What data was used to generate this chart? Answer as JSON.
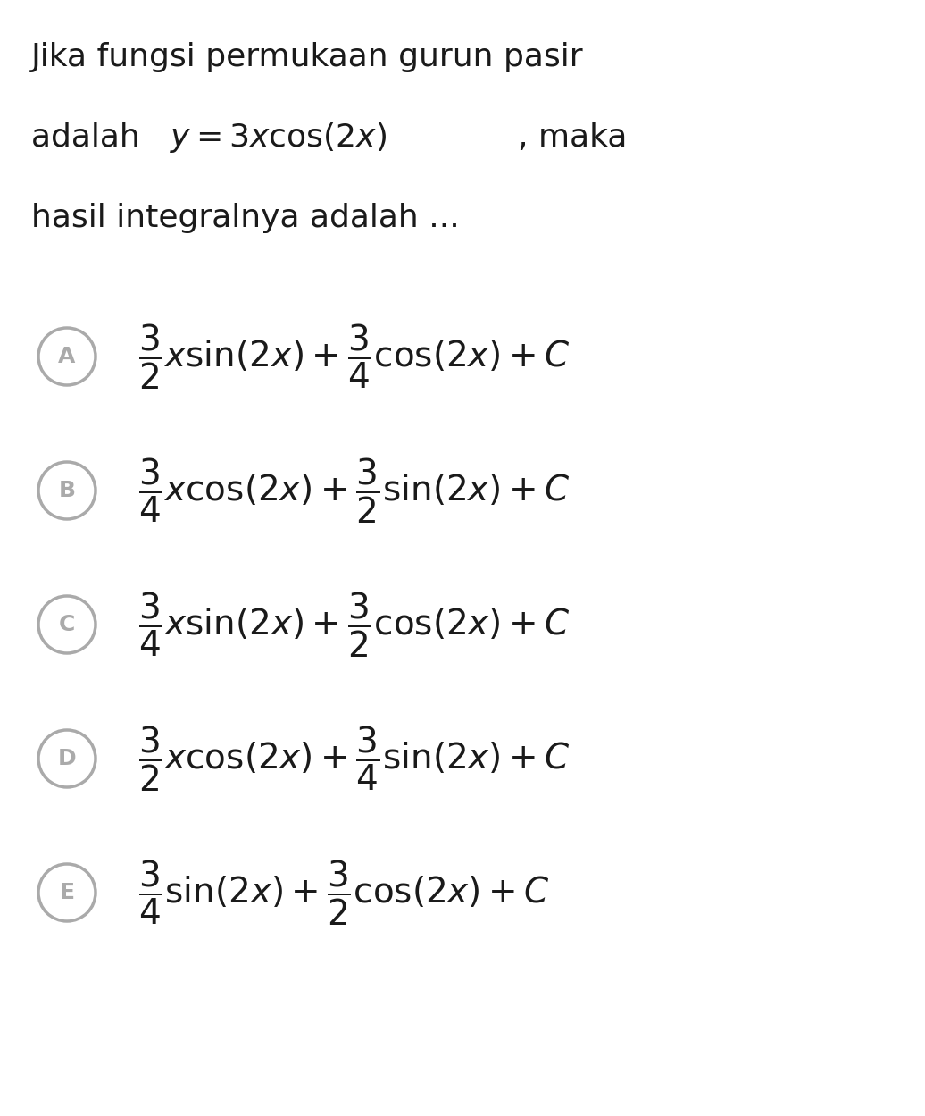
{
  "background_color": "#ffffff",
  "text_color": "#1a1a1a",
  "circle_color": "#aaaaaa",
  "fig_width": 10.36,
  "fig_height": 12.49,
  "title_line1": "Jika fungsi permukaan gurun pasir",
  "title_line2_plain": "adalah ",
  "title_line2_math": "$y = 3x\\cos(2x)$",
  "title_line2_end": ", maka",
  "title_line3": "hasil integralnya adalah ...",
  "options": [
    {
      "label": "A",
      "formula": "$\\dfrac{3}{2}x\\sin(2x) + \\dfrac{3}{4}\\cos(2x) + C$"
    },
    {
      "label": "B",
      "formula": "$\\dfrac{3}{4}x\\cos(2x) + \\dfrac{3}{2}\\sin(2x) + C$"
    },
    {
      "label": "C",
      "formula": "$\\dfrac{3}{4}x\\sin(2x) + \\dfrac{3}{2}\\cos(2x) + C$"
    },
    {
      "label": "D",
      "formula": "$\\dfrac{3}{2}x\\cos(2x) + \\dfrac{3}{4}\\sin(2x) + C$"
    },
    {
      "label": "E",
      "formula": "$\\dfrac{3}{4}\\sin(2x) + \\dfrac{3}{2}\\cos(2x) + C$"
    }
  ]
}
